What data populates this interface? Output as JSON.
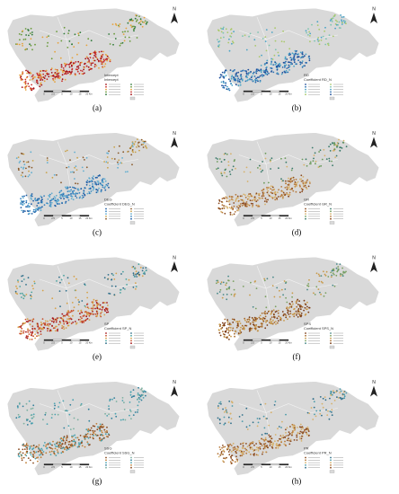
{
  "panels": [
    {
      "label": "(a)",
      "legend_title": "Intercept",
      "legend_subtitle": "Intercept"
    },
    {
      "label": "(b)",
      "legend_title": "RD",
      "legend_subtitle": "Coefficient RD_N"
    },
    {
      "label": "(c)",
      "legend_title": "DEG",
      "legend_subtitle": "Coefficient DEG_N"
    },
    {
      "label": "(d)",
      "legend_title": "GR",
      "legend_subtitle": "Coefficient GR_N"
    },
    {
      "label": "(e)",
      "legend_title": "SP",
      "legend_subtitle": "Coefficient SP_N"
    },
    {
      "label": "(f)",
      "legend_title": "SPS",
      "legend_subtitle": "Coefficient SPS_N"
    },
    {
      "label": "(g)",
      "legend_title": "SSG",
      "legend_subtitle": "Coefficient SSG_N"
    },
    {
      "label": "(h)",
      "legend_title": "PR",
      "legend_subtitle": "Coefficient PR_N"
    }
  ],
  "north": "N",
  "scale_labels": [
    "0",
    "2.5",
    "5",
    "10",
    "15",
    "20 Km"
  ]
}
